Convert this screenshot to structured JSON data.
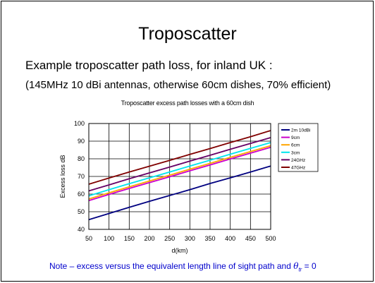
{
  "slide": {
    "title": "Troposcatter",
    "subtitle": "Example troposcatter path loss, for inland UK :",
    "params": "(145MHz 10 dBi antennas, otherwise 60cm dishes, 70% efficient)",
    "note_text": "Note – excess versus the equivalent length line of sight path and ",
    "note_symbol": "θ",
    "note_subscript": "tr",
    "note_suffix": " = 0"
  },
  "chart_data": {
    "type": "line",
    "title": "Troposcatter excess path losses with a 60cm dish",
    "xlabel": "d(km)",
    "ylabel": "Excess loss dB",
    "xlim": [
      50,
      500
    ],
    "ylim": [
      40,
      100
    ],
    "x_ticks": [
      50,
      100,
      150,
      200,
      250,
      300,
      350,
      400,
      450,
      500
    ],
    "y_ticks": [
      40,
      50,
      60,
      70,
      80,
      90,
      100
    ],
    "grid": true,
    "legend_position": "right",
    "x": [
      50,
      100,
      150,
      200,
      250,
      300,
      350,
      400,
      450,
      500
    ],
    "series": [
      {
        "name": "2m 10dBi",
        "color": "#000080",
        "values": [
          45.5,
          49,
          52.5,
          55.9,
          59.2,
          62.5,
          66,
          69.2,
          72.5,
          75.9
        ]
      },
      {
        "name": "9cm",
        "color": "#cc00cc",
        "values": [
          56.3,
          59.8,
          63.2,
          66.5,
          69.8,
          73.2,
          76.5,
          79.9,
          83.2,
          86.5
        ]
      },
      {
        "name": "6cm",
        "color": "#ffa500",
        "values": [
          57.2,
          60.7,
          64.1,
          67.4,
          70.7,
          74.1,
          77.4,
          80.8,
          84.1,
          87.4
        ]
      },
      {
        "name": "3cm",
        "color": "#00e5ee",
        "values": [
          59,
          62.5,
          65.9,
          69.2,
          72.5,
          75.9,
          79.2,
          82.6,
          85.9,
          89.2
        ]
      },
      {
        "name": "24GHz",
        "color": "#660066",
        "values": [
          61.8,
          65.2,
          68.7,
          72,
          75.3,
          78.7,
          82,
          85.4,
          88.7,
          92
        ]
      },
      {
        "name": "47GHz",
        "color": "#800000",
        "values": [
          65.6,
          69.1,
          72.5,
          75.8,
          79.1,
          82.5,
          85.8,
          89.2,
          92.5,
          96
        ]
      }
    ]
  }
}
